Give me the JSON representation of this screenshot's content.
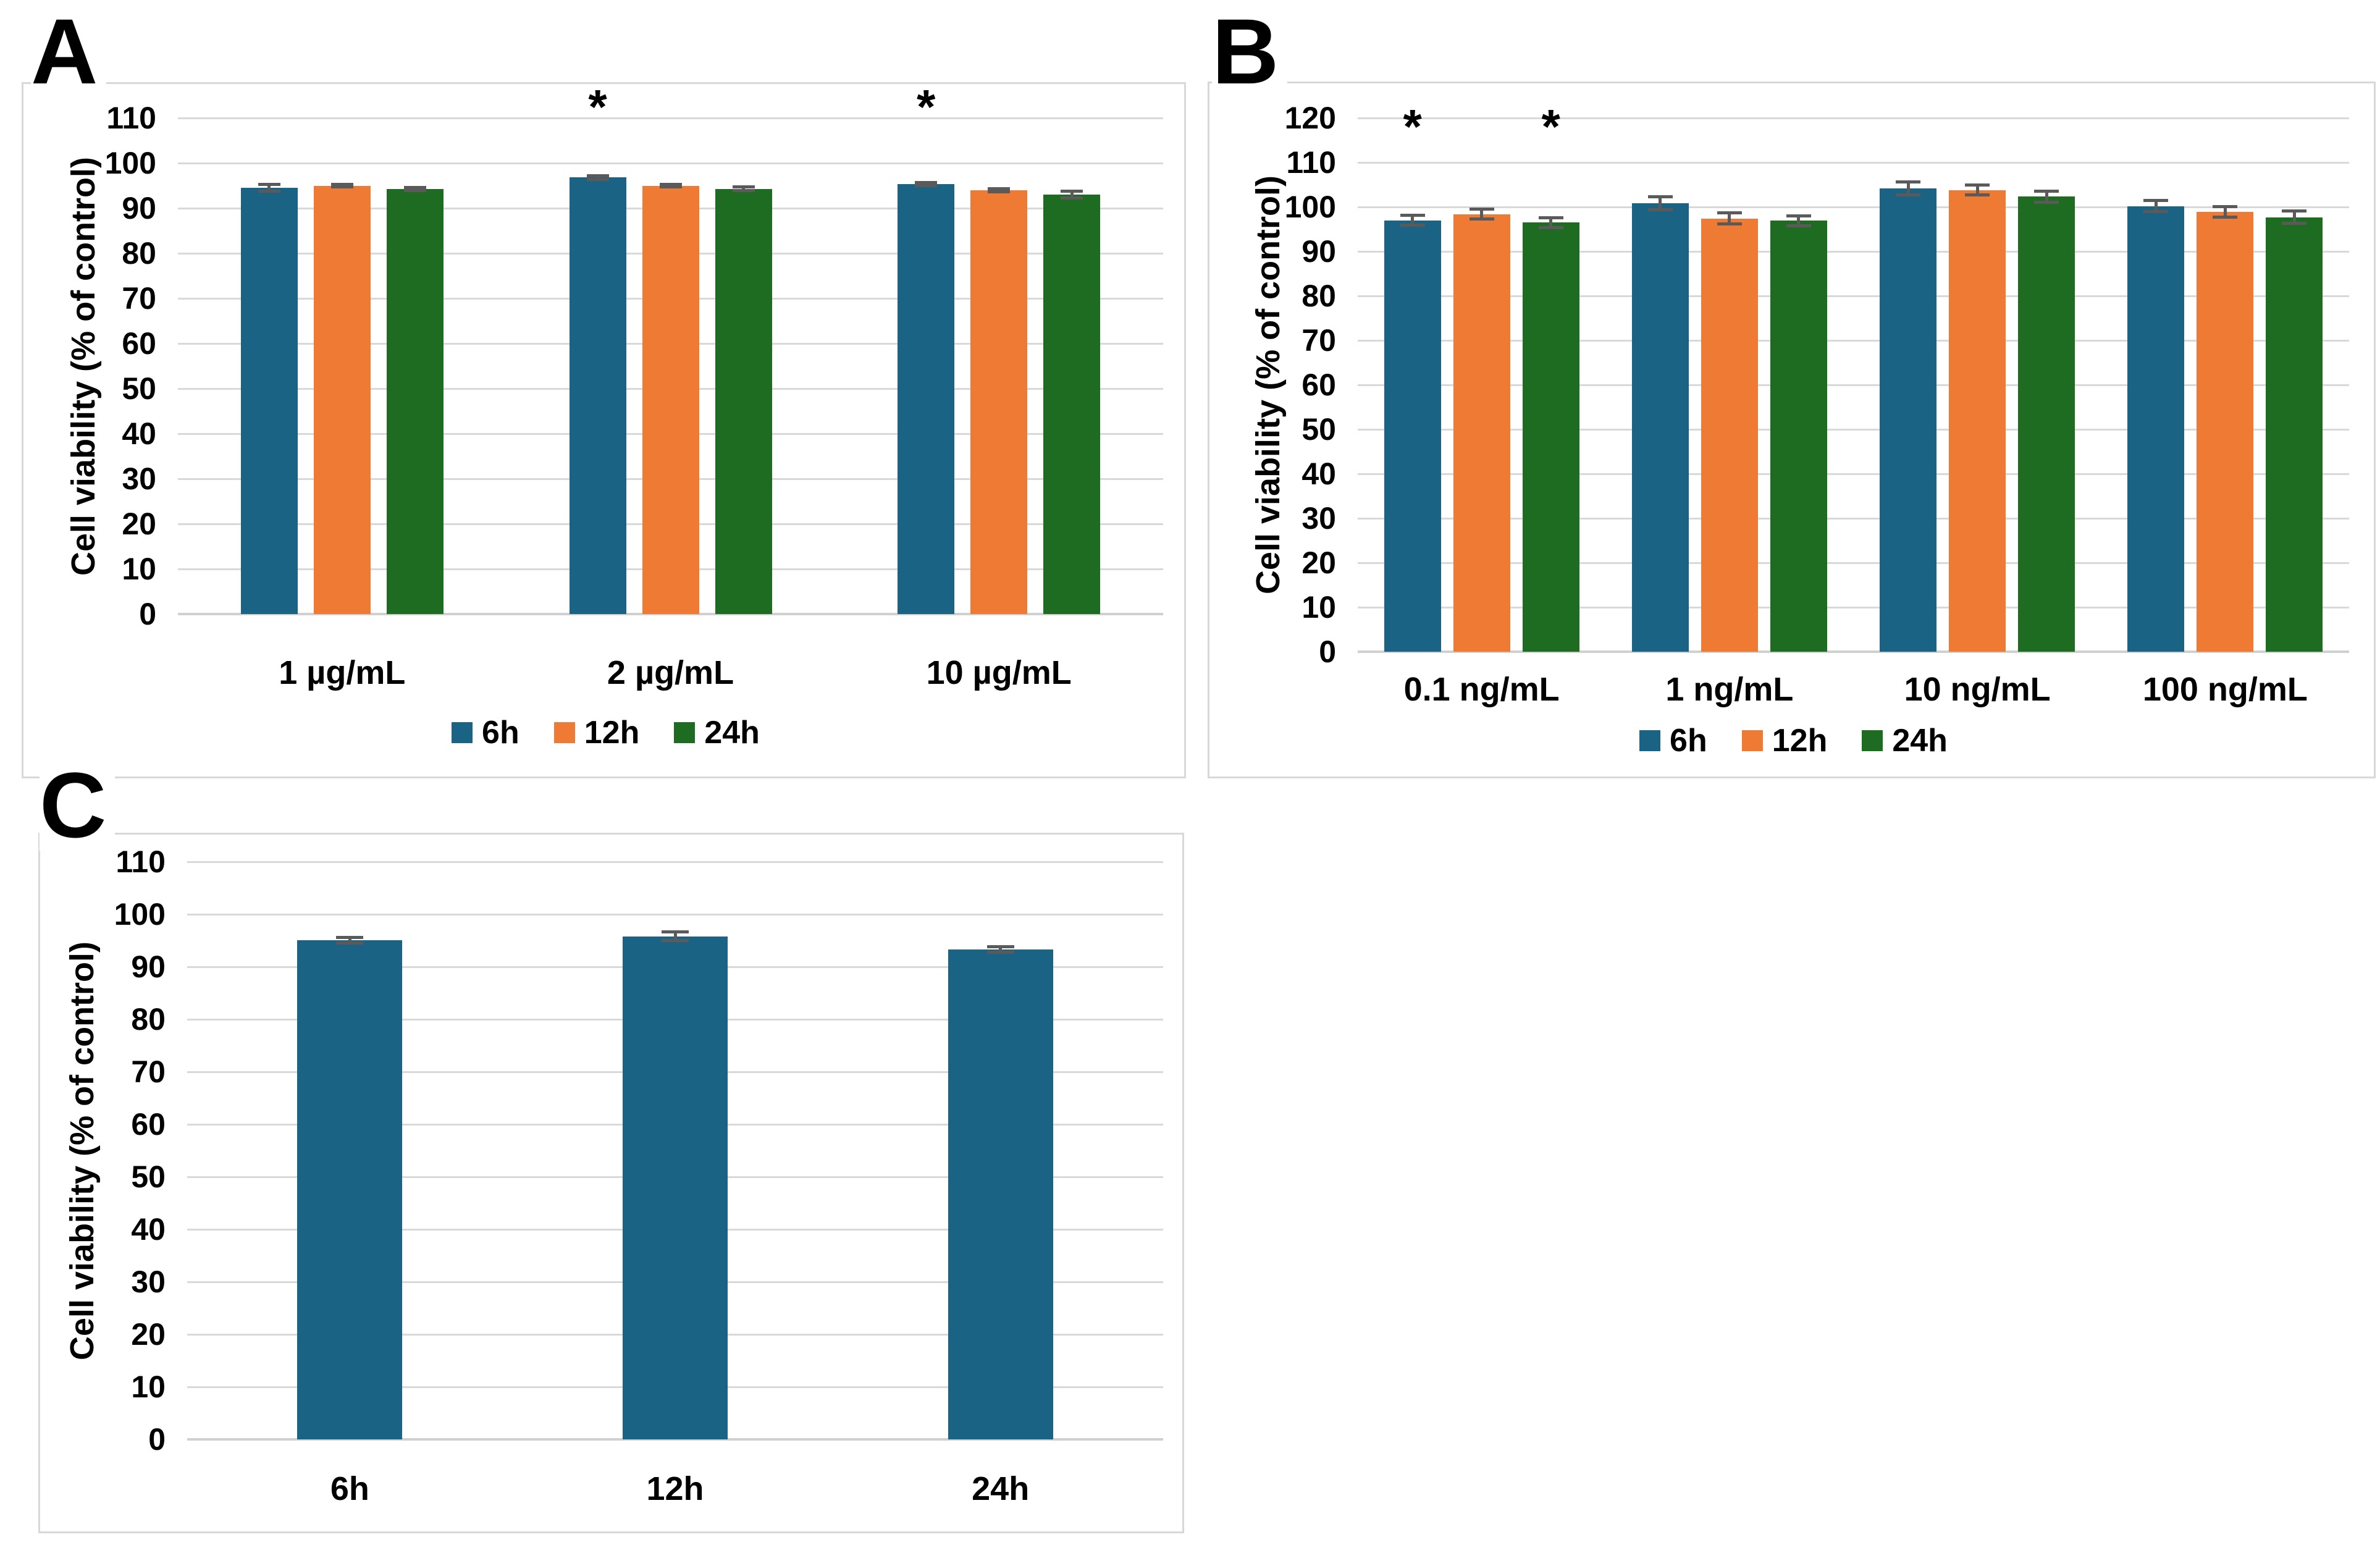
{
  "figure_title": "",
  "colors": {
    "series_blue": "#1B6384",
    "series_orange": "#EE7A33",
    "series_green": "#1E6B22",
    "gridline": "#D9D9D9",
    "error_bar": "#5A5A5A",
    "panel_border": "#D8D8D8",
    "text": "#000000",
    "background": "#FFFFFF"
  },
  "chart_data": [
    {
      "panel_label": "A",
      "type": "bar",
      "title": "",
      "xlabel": "",
      "ylabel": "Cell viability (% of control)",
      "ylim": [
        0,
        110
      ],
      "ytick_step": 10,
      "grid": true,
      "legend_position": "bottom-center",
      "legend_visible": true,
      "categories": [
        "1 µg/mL",
        "2 µg/mL",
        "10 µg/mL"
      ],
      "series": [
        {
          "name": "6h",
          "color": "#1B6384",
          "values": [
            94.5,
            96.8,
            95.4
          ],
          "errors": [
            0.8,
            0.5,
            0.4
          ]
        },
        {
          "name": "12h",
          "color": "#EE7A33",
          "values": [
            95.0,
            95.0,
            94.0
          ],
          "errors": [
            0.3,
            0.3,
            0.4
          ]
        },
        {
          "name": "24h",
          "color": "#1E6B22",
          "values": [
            94.3,
            94.3,
            93.0
          ],
          "errors": [
            0.4,
            0.5,
            0.8
          ]
        }
      ],
      "annotations": [
        {
          "text": "*",
          "category_index": 1,
          "series_index": 0,
          "y_value": 112.5
        },
        {
          "text": "*",
          "category_index": 2,
          "series_index": 0,
          "y_value": 112.5
        }
      ]
    },
    {
      "panel_label": "B",
      "type": "bar",
      "title": "",
      "xlabel": "",
      "ylabel": "Cell viability (% of control)",
      "ylim": [
        0,
        120
      ],
      "ytick_step": 10,
      "grid": true,
      "legend_position": "bottom-center",
      "legend_visible": true,
      "categories": [
        "0.1 ng/mL",
        "1 ng/mL",
        "10 ng/mL",
        "100 ng/mL"
      ],
      "series": [
        {
          "name": "6h",
          "color": "#1B6384",
          "values": [
            97.0,
            100.8,
            104.2,
            100.2
          ],
          "errors": [
            1.2,
            1.5,
            1.5,
            1.3
          ]
        },
        {
          "name": "12h",
          "color": "#EE7A33",
          "values": [
            98.4,
            97.4,
            103.8,
            98.9
          ],
          "errors": [
            1.2,
            1.3,
            1.2,
            1.2
          ]
        },
        {
          "name": "24h",
          "color": "#1E6B22",
          "values": [
            96.5,
            96.9,
            102.3,
            97.7
          ],
          "errors": [
            1.2,
            1.2,
            1.3,
            1.5
          ]
        }
      ],
      "annotations": [
        {
          "text": "*",
          "category_index": 0,
          "series_index": 0,
          "y_value": 118
        },
        {
          "text": "*",
          "category_index": 0,
          "series_index": 2,
          "y_value": 118
        }
      ]
    },
    {
      "panel_label": "C",
      "type": "bar",
      "title": "",
      "xlabel": "",
      "ylabel": "Cell viability (% of control)",
      "ylim": [
        0,
        110
      ],
      "ytick_step": 10,
      "grid": true,
      "legend_position": "none",
      "legend_visible": false,
      "categories": [
        "6h",
        "12h",
        "24h"
      ],
      "series": [
        {
          "name": "",
          "color": "#1B6384",
          "values": [
            95.1,
            95.8,
            93.3
          ],
          "errors": [
            0.6,
            0.9,
            0.6
          ]
        }
      ],
      "annotations": []
    }
  ]
}
